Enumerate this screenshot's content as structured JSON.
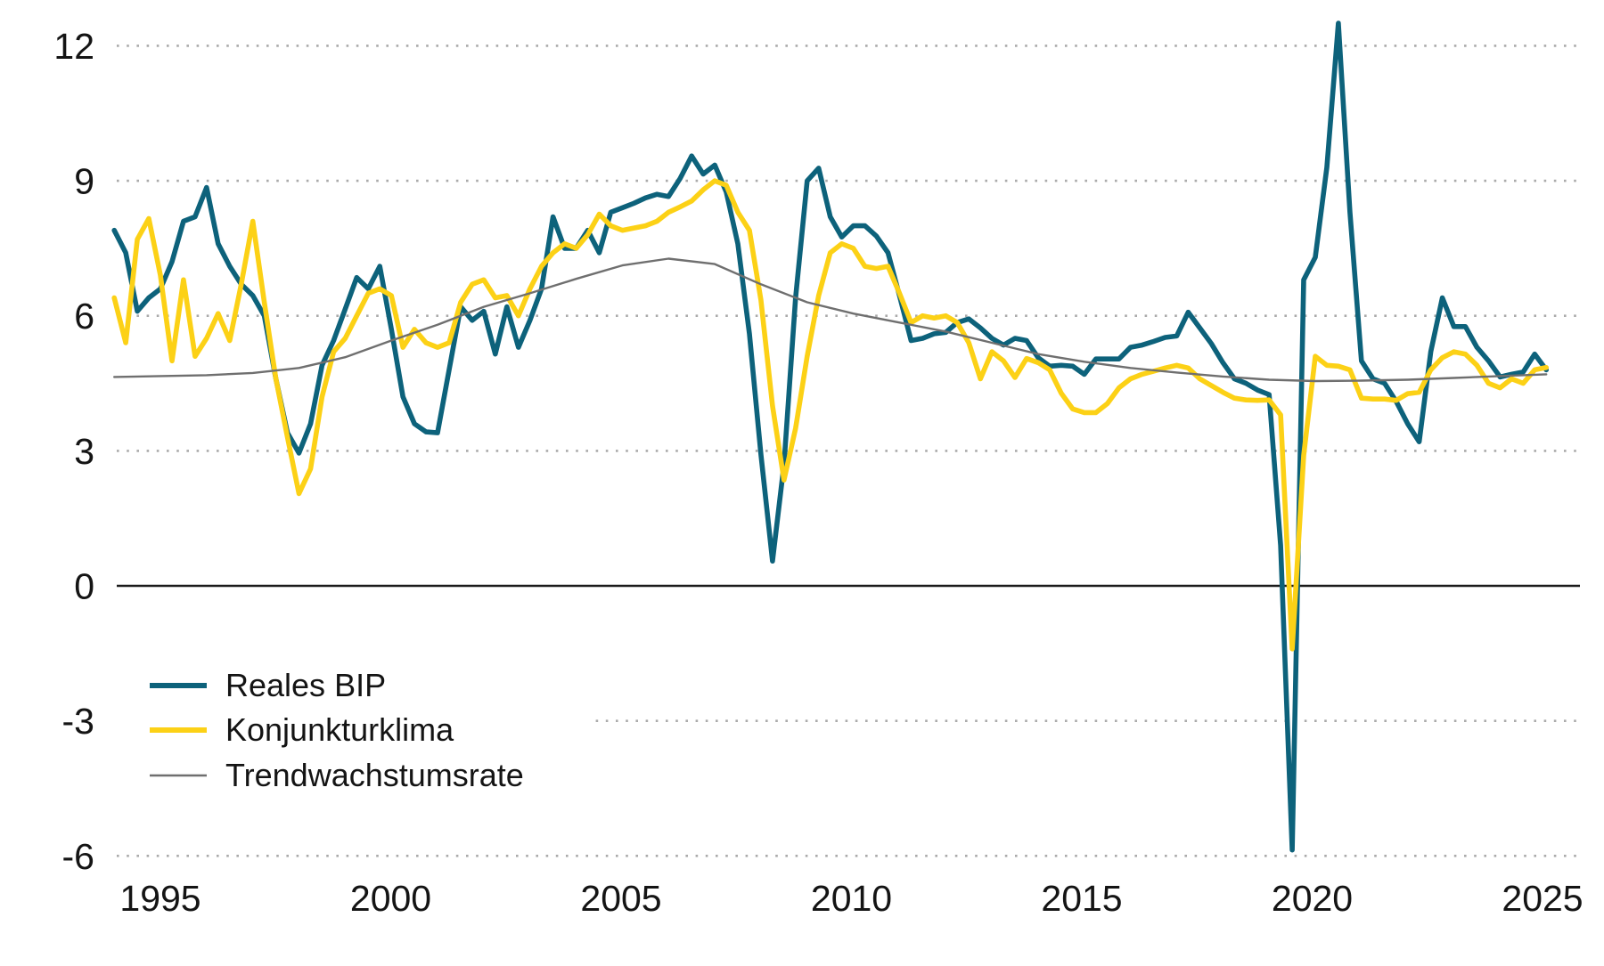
{
  "chart_data": {
    "type": "line",
    "title": "",
    "grid": "horizontal dotted gridlines, solid black zero line",
    "legend_position": "bottom-left inside plot",
    "x_axis": {
      "label": "",
      "range": [
        1994,
        2025.7
      ],
      "tick_labels": [
        "1995",
        "2000",
        "2005",
        "2010",
        "2015",
        "2020",
        "2025"
      ],
      "tick_values": [
        1995,
        2000,
        2005,
        2010,
        2015,
        2020,
        2025
      ]
    },
    "y_axis": {
      "label": "",
      "range": [
        -6,
        12.6
      ],
      "tick_labels": [
        "12",
        "9",
        "6",
        "3",
        "0",
        "-3",
        "-6"
      ],
      "tick_values": [
        12,
        9,
        6,
        3,
        0,
        -3,
        -6
      ]
    },
    "colors": {
      "reales_bip": "#0d627b",
      "konjunkturklima": "#fcd116",
      "trendwachstumsrate": "#6f6f6f",
      "gridline": "#aaaaaa",
      "zero_line": "#1a1a1a",
      "text": "#141414"
    },
    "series": [
      {
        "id": "reales-bip",
        "name": "Reales BIP",
        "color": "#0d627b",
        "x_start": 1994.0,
        "x_step": 0.25,
        "values": [
          7.9,
          7.4,
          6.1,
          6.4,
          6.6,
          7.2,
          8.1,
          8.2,
          8.85,
          7.6,
          7.1,
          6.7,
          6.45,
          6.0,
          4.6,
          3.4,
          2.95,
          3.6,
          4.9,
          5.45,
          6.15,
          6.85,
          6.6,
          7.1,
          5.7,
          4.2,
          3.6,
          3.42,
          3.4,
          4.8,
          6.2,
          5.9,
          6.1,
          5.15,
          6.2,
          5.3,
          5.9,
          6.6,
          8.2,
          7.5,
          7.5,
          7.9,
          7.4,
          8.3,
          8.4,
          8.5,
          8.62,
          8.7,
          8.65,
          9.05,
          9.55,
          9.15,
          9.35,
          8.75,
          7.6,
          5.6,
          2.92,
          0.55,
          2.7,
          6.4,
          9.0,
          9.28,
          8.2,
          7.75,
          8.0,
          8.0,
          7.77,
          7.4,
          6.45,
          5.45,
          5.5,
          5.6,
          5.63,
          5.85,
          5.93,
          5.73,
          5.5,
          5.35,
          5.5,
          5.45,
          5.07,
          4.88,
          4.9,
          4.88,
          4.7,
          5.04,
          5.04,
          5.04,
          5.3,
          5.35,
          5.43,
          5.52,
          5.55,
          6.08,
          5.73,
          5.38,
          4.96,
          4.6,
          4.5,
          4.35,
          4.25,
          0.9,
          -5.87,
          6.8,
          7.3,
          9.3,
          12.5,
          8.3,
          5.0,
          4.6,
          4.5,
          4.1,
          3.6,
          3.2,
          5.2,
          6.4,
          5.76,
          5.76,
          5.3,
          5.0,
          4.64,
          4.7,
          4.75,
          5.15,
          4.8
        ]
      },
      {
        "id": "konjunkturklima",
        "name": "Konjunkturklima",
        "color": "#fcd116",
        "x_start": 1994.0,
        "x_step": 0.25,
        "values": [
          6.4,
          5.4,
          7.7,
          8.16,
          6.9,
          5.0,
          6.8,
          5.1,
          5.5,
          6.05,
          5.45,
          6.7,
          8.1,
          6.3,
          4.6,
          3.3,
          2.05,
          2.6,
          4.2,
          5.2,
          5.5,
          6.0,
          6.5,
          6.6,
          6.45,
          5.3,
          5.7,
          5.4,
          5.3,
          5.4,
          6.3,
          6.7,
          6.8,
          6.4,
          6.45,
          6.0,
          6.6,
          7.1,
          7.4,
          7.6,
          7.5,
          7.8,
          8.26,
          8.0,
          7.9,
          7.95,
          8.0,
          8.1,
          8.3,
          8.42,
          8.55,
          8.8,
          9.0,
          8.9,
          8.3,
          7.9,
          6.35,
          4.0,
          2.35,
          3.5,
          5.1,
          6.45,
          7.4,
          7.6,
          7.5,
          7.1,
          7.05,
          7.1,
          6.5,
          5.85,
          6.0,
          5.95,
          6.0,
          5.85,
          5.4,
          4.6,
          5.2,
          5.0,
          4.63,
          5.05,
          4.96,
          4.8,
          4.28,
          3.93,
          3.85,
          3.85,
          4.05,
          4.4,
          4.6,
          4.7,
          4.77,
          4.84,
          4.9,
          4.84,
          4.6,
          4.45,
          4.3,
          4.17,
          4.13,
          4.12,
          4.13,
          3.8,
          -1.4,
          2.9,
          5.1,
          4.9,
          4.88,
          4.8,
          4.17,
          4.15,
          4.15,
          4.12,
          4.27,
          4.3,
          4.8,
          5.07,
          5.2,
          5.15,
          4.9,
          4.5,
          4.4,
          4.6,
          4.5,
          4.8,
          4.85
        ]
      },
      {
        "id": "trendwachstumsrate",
        "name": "Trendwachstumsrate",
        "color": "#6f6f6f",
        "x_start": 1994.0,
        "x_step": 1.0,
        "values": [
          4.64,
          4.66,
          4.68,
          4.73,
          4.84,
          5.08,
          5.45,
          5.8,
          6.2,
          6.5,
          6.82,
          7.12,
          7.27,
          7.15,
          6.7,
          6.3,
          6.05,
          5.85,
          5.65,
          5.4,
          5.15,
          4.98,
          4.84,
          4.74,
          4.65,
          4.58,
          4.55,
          4.56,
          4.58,
          4.62,
          4.66,
          4.7
        ]
      }
    ]
  }
}
